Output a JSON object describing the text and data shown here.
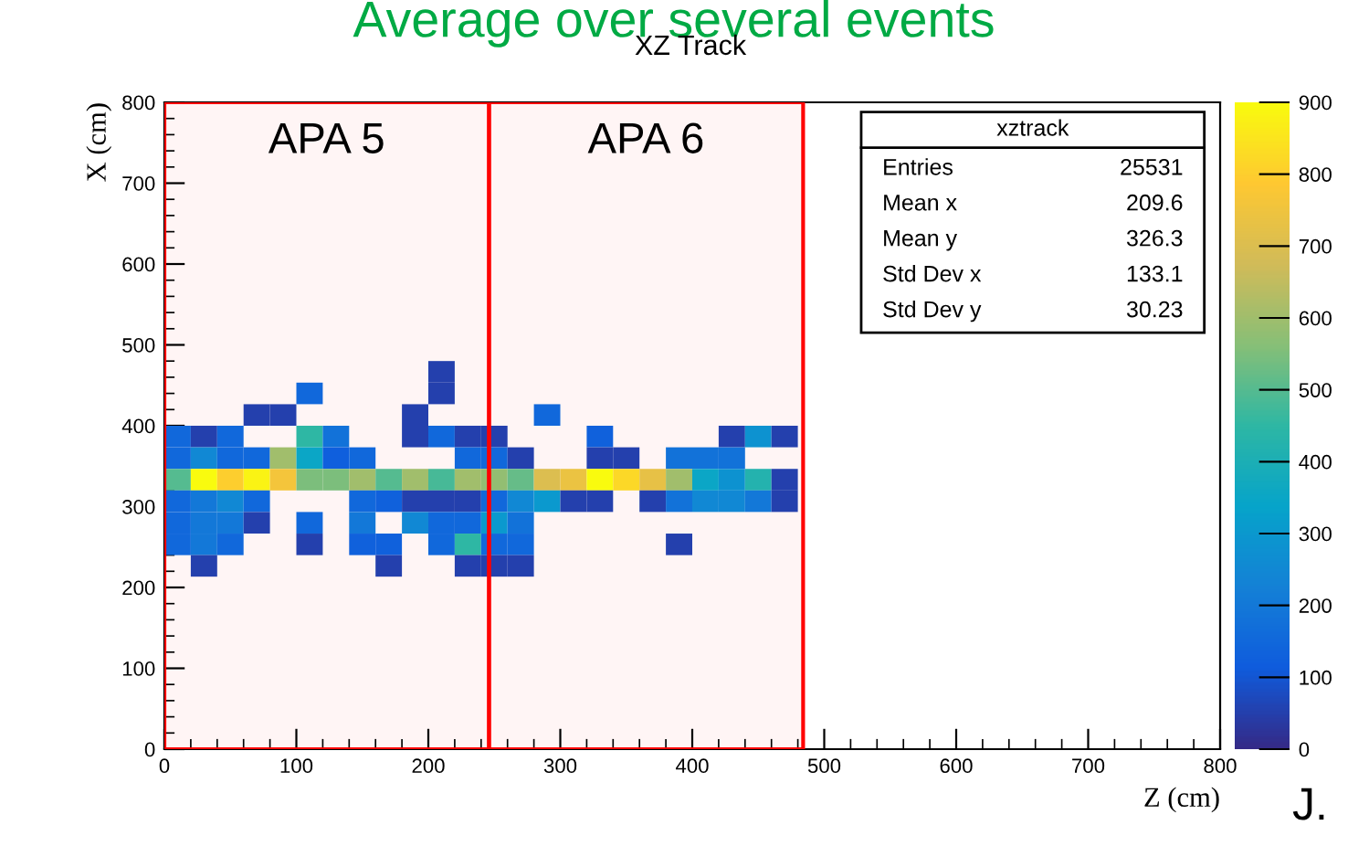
{
  "chart_data": {
    "type": "scatter",
    "title": "Average over several events",
    "subtitle": "XZ Track",
    "xlabel": "Z (cm)",
    "ylabel": "X (cm)",
    "marker": "square",
    "x": [
      210,
      110,
      210,
      70,
      90,
      190,
      290,
      10,
      30,
      50,
      110,
      130,
      190,
      210,
      230,
      250,
      330,
      430,
      450,
      470,
      10,
      30,
      50,
      70,
      90,
      110,
      130,
      150,
      230,
      250,
      270,
      330,
      350,
      390,
      410,
      430,
      10,
      30,
      50,
      70,
      90,
      110,
      130,
      150,
      170,
      190,
      210,
      230,
      250,
      270,
      290,
      310,
      330,
      350,
      370,
      390,
      410,
      430,
      450,
      470,
      10,
      30,
      50,
      70,
      150,
      170,
      190,
      210,
      230,
      250,
      270,
      290,
      310,
      330,
      370,
      390,
      410,
      430,
      450,
      470,
      10,
      30,
      50,
      70,
      110,
      150,
      190,
      210,
      230,
      250,
      270,
      10,
      30,
      50,
      110,
      150,
      170,
      210,
      230,
      250,
      270,
      390,
      30,
      170,
      230,
      250,
      270
    ],
    "values": [
      466.7,
      440,
      440,
      413.3,
      413.3,
      413.3,
      413.3,
      386.7,
      386.7,
      386.7,
      386.7,
      386.7,
      386.7,
      386.7,
      386.7,
      386.7,
      386.7,
      386.7,
      386.7,
      386.7,
      360,
      360,
      360,
      360,
      360,
      360,
      360,
      360,
      360,
      360,
      360,
      360,
      360,
      360,
      360,
      360,
      333.3,
      333.3,
      333.3,
      333.3,
      333.3,
      333.3,
      333.3,
      333.3,
      333.3,
      333.3,
      333.3,
      333.3,
      333.3,
      333.3,
      333.3,
      333.3,
      333.3,
      333.3,
      333.3,
      333.3,
      333.3,
      333.3,
      333.3,
      333.3,
      306.7,
      306.7,
      306.7,
      306.7,
      306.7,
      306.7,
      306.7,
      306.7,
      306.7,
      306.7,
      306.7,
      306.7,
      306.7,
      306.7,
      306.7,
      306.7,
      306.7,
      306.7,
      306.7,
      306.7,
      280,
      280,
      280,
      280,
      280,
      280,
      280,
      280,
      280,
      280,
      280,
      253.3,
      253.3,
      253.3,
      253.3,
      253.3,
      253.3,
      253.3,
      253.3,
      253.3,
      253.3,
      253.3,
      226.7,
      226.7,
      226.7,
      226.7,
      226.7
    ],
    "cvalues": [
      50,
      150,
      50,
      50,
      50,
      50,
      150,
      150,
      50,
      150,
      450,
      180,
      50,
      150,
      50,
      50,
      130,
      50,
      280,
      50,
      150,
      250,
      150,
      150,
      600,
      350,
      120,
      150,
      150,
      150,
      50,
      50,
      50,
      180,
      180,
      180,
      500,
      900,
      800,
      880,
      760,
      550,
      550,
      600,
      500,
      600,
      480,
      600,
      580,
      520,
      700,
      740,
      900,
      820,
      730,
      600,
      350,
      280,
      420,
      50,
      150,
      200,
      250,
      150,
      150,
      130,
      50,
      50,
      50,
      150,
      250,
      300,
      50,
      50,
      50,
      180,
      250,
      250,
      200,
      50,
      150,
      200,
      200,
      50,
      150,
      200,
      250,
      150,
      150,
      300,
      180,
      150,
      200,
      150,
      50,
      130,
      130,
      150,
      450,
      150,
      150,
      50,
      50,
      50,
      50,
      50,
      50
    ],
    "clim": [
      0,
      900
    ],
    "cticks": [
      0,
      100,
      200,
      300,
      400,
      500,
      600,
      700,
      800,
      900
    ],
    "xlim": [
      0,
      800
    ],
    "ylim": [
      0,
      800
    ],
    "xticks": [
      0,
      100,
      200,
      300,
      400,
      500,
      600,
      700,
      800
    ],
    "yticks": [
      0,
      100,
      200,
      300,
      400,
      500,
      600,
      700,
      800
    ],
    "bands": [
      {
        "axis": "x",
        "from": 0,
        "to": 246,
        "label": "APA 5",
        "color": "#ff0000"
      },
      {
        "axis": "x",
        "from": 246,
        "to": 484,
        "label": "APA 6",
        "color": "#ff0000"
      }
    ],
    "annotations": [
      "xztrack",
      "Entries 25531",
      "Mean x 209.6",
      "Mean y 326.3",
      "Std Dev x 133.1",
      "Std Dev y 30.23",
      "J."
    ],
    "grid": false
  }
}
